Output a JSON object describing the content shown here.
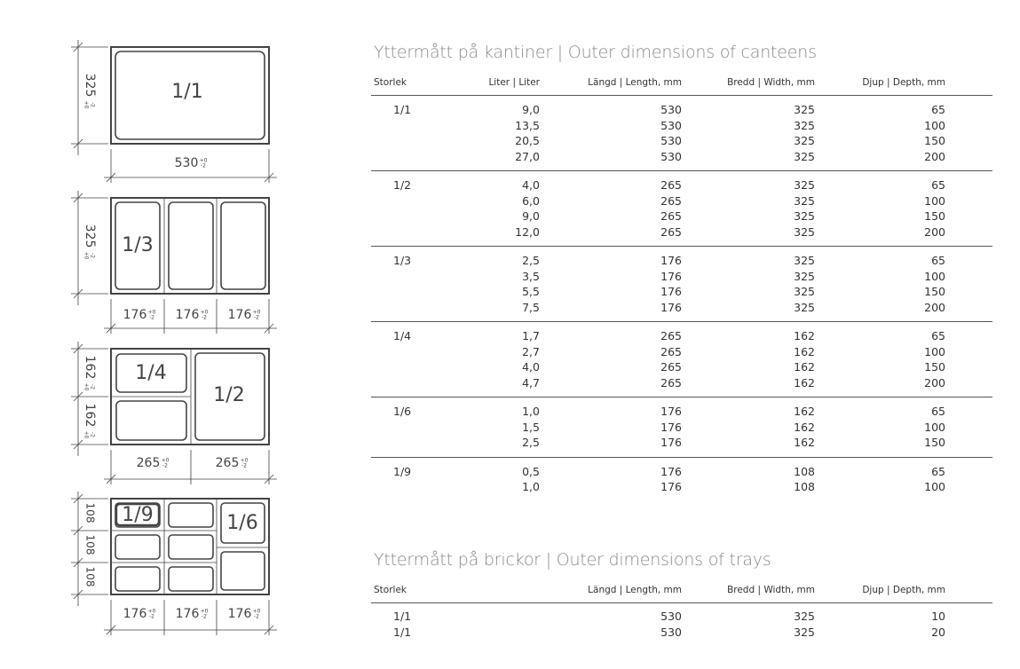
{
  "diagrams": {
    "tol_plus": "+0",
    "tol_minus": "-2",
    "d1": {
      "label": "1/1",
      "height": "325",
      "width": "530"
    },
    "d2": {
      "label": "1/3",
      "height": "325",
      "widths": [
        "176",
        "176",
        "176"
      ]
    },
    "d3": {
      "label_quarter": "1/4",
      "label_half": "1/2",
      "heights": [
        "162",
        "162"
      ],
      "widths": [
        "265",
        "265"
      ]
    },
    "d4": {
      "label_ninth": "1/9",
      "label_sixth": "1/6",
      "heights": [
        "108",
        "108",
        "108"
      ],
      "widths": [
        "176",
        "176",
        "176"
      ]
    }
  },
  "canteens": {
    "title": "Yttermått på kantiner | Outer dimensions of canteens",
    "headers": [
      "Storlek",
      "Liter | Liter",
      "Längd | Length, mm",
      "Bredd | Width, mm",
      "Djup | Depth, mm"
    ],
    "groups": [
      {
        "size": "1/1",
        "rows": [
          [
            "9,0",
            "530",
            "325",
            "65"
          ],
          [
            "13,5",
            "530",
            "325",
            "100"
          ],
          [
            "20,5",
            "530",
            "325",
            "150"
          ],
          [
            "27,0",
            "530",
            "325",
            "200"
          ]
        ]
      },
      {
        "size": "1/2",
        "rows": [
          [
            "4,0",
            "265",
            "325",
            "65"
          ],
          [
            "6,0",
            "265",
            "325",
            "100"
          ],
          [
            "9,0",
            "265",
            "325",
            "150"
          ],
          [
            "12,0",
            "265",
            "325",
            "200"
          ]
        ]
      },
      {
        "size": "1/3",
        "rows": [
          [
            "2,5",
            "176",
            "325",
            "65"
          ],
          [
            "3,5",
            "176",
            "325",
            "100"
          ],
          [
            "5,5",
            "176",
            "325",
            "150"
          ],
          [
            "7,5",
            "176",
            "325",
            "200"
          ]
        ]
      },
      {
        "size": "1/4",
        "rows": [
          [
            "1,7",
            "265",
            "162",
            "65"
          ],
          [
            "2,7",
            "265",
            "162",
            "100"
          ],
          [
            "4,0",
            "265",
            "162",
            "150"
          ],
          [
            "4,7",
            "265",
            "162",
            "200"
          ]
        ]
      },
      {
        "size": "1/6",
        "rows": [
          [
            "1,0",
            "176",
            "162",
            "65"
          ],
          [
            "1,5",
            "176",
            "162",
            "100"
          ],
          [
            "2,5",
            "176",
            "162",
            "150"
          ]
        ]
      },
      {
        "size": "1/9",
        "rows": [
          [
            "0,5",
            "176",
            "108",
            "65"
          ],
          [
            "1,0",
            "176",
            "108",
            "100"
          ]
        ]
      }
    ]
  },
  "trays": {
    "title": "Yttermått på brickor | Outer dimensions of trays",
    "headers": [
      "Storlek",
      "Längd | Length, mm",
      "Bredd | Width, mm",
      "Djup | Depth, mm"
    ],
    "rows": [
      [
        "1/1",
        "530",
        "325",
        "10"
      ],
      [
        "1/1",
        "530",
        "325",
        "20"
      ]
    ]
  }
}
